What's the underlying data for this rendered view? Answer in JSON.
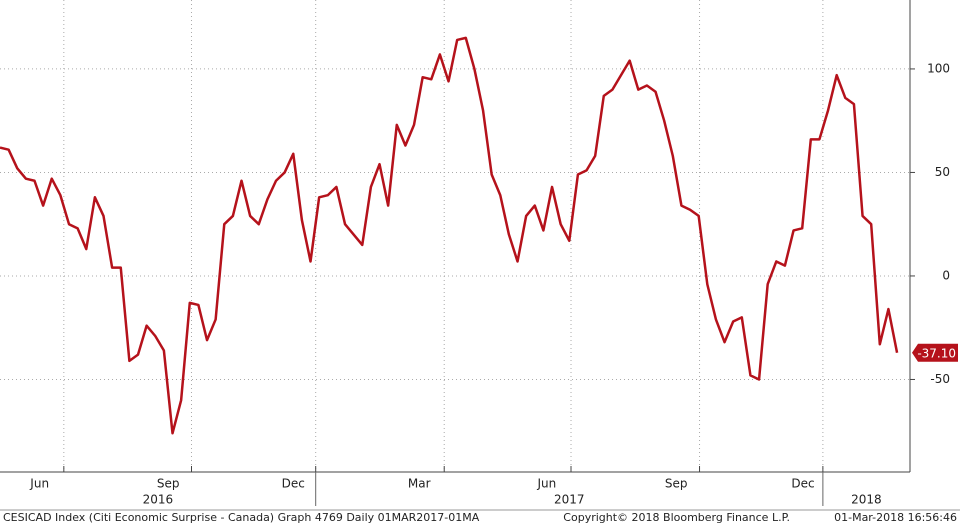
{
  "chart_data": {
    "type": "line",
    "series": [
      {
        "name": "CESICAD Index",
        "color": "#b5121b",
        "values": [
          62,
          61,
          52,
          47,
          46,
          34,
          47,
          39,
          25,
          23,
          13,
          38,
          29,
          4,
          4,
          -41,
          -38,
          -24,
          -29,
          -36,
          -76,
          -60,
          -13,
          -14,
          -31,
          -21,
          25,
          29,
          46,
          29,
          25,
          37,
          46,
          50,
          59,
          27,
          7,
          38,
          39,
          43,
          25,
          20,
          15,
          43,
          54,
          34,
          73,
          63,
          73,
          96,
          95,
          107,
          94,
          114,
          115,
          100,
          80,
          49,
          39,
          20,
          7,
          29,
          34,
          22,
          43,
          25,
          17,
          49,
          51,
          58,
          87,
          90,
          97,
          104,
          90,
          92,
          89,
          75,
          58,
          34,
          32,
          29,
          -4,
          -21,
          -32,
          -22,
          -20,
          -48,
          -50,
          -4,
          7,
          5,
          22,
          23,
          66,
          66,
          80,
          97,
          86,
          83,
          29,
          25,
          -33,
          -16,
          -37.1
        ],
        "last_label": "-37.10"
      }
    ],
    "xlim": [
      0,
      105.5
    ],
    "xticks": [
      {
        "value": 4.6,
        "label": "Jun"
      },
      {
        "value": 19.5,
        "label": "Sep"
      },
      {
        "value": 34,
        "label": "Dec"
      },
      {
        "value": 48.6,
        "label": "Mar"
      },
      {
        "value": 63.4,
        "label": "Jun"
      },
      {
        "value": 78.4,
        "label": "Sep"
      },
      {
        "value": 93.1,
        "label": "Dec"
      }
    ],
    "xgrid": [
      7.4,
      22.2,
      36.6,
      51.5,
      66.2,
      81.1,
      95.4
    ],
    "years": [
      {
        "value": 0,
        "label": "2016"
      },
      {
        "value": 36.6,
        "label": "2017"
      },
      {
        "value": 95.4,
        "label": "2018"
      }
    ],
    "ylim": [
      -94.7,
      133.3
    ],
    "yticks": [
      -50,
      0,
      50,
      100
    ],
    "grid": true,
    "footer": {
      "left": "CESICAD Index (Citi Economic Surprise - Canada) Graph 4769  Daily 01MAR2017-01MA",
      "center": "Copyright© 2018 Bloomberg Finance L.P.",
      "right": "01-Mar-2018 16:56:46"
    }
  }
}
